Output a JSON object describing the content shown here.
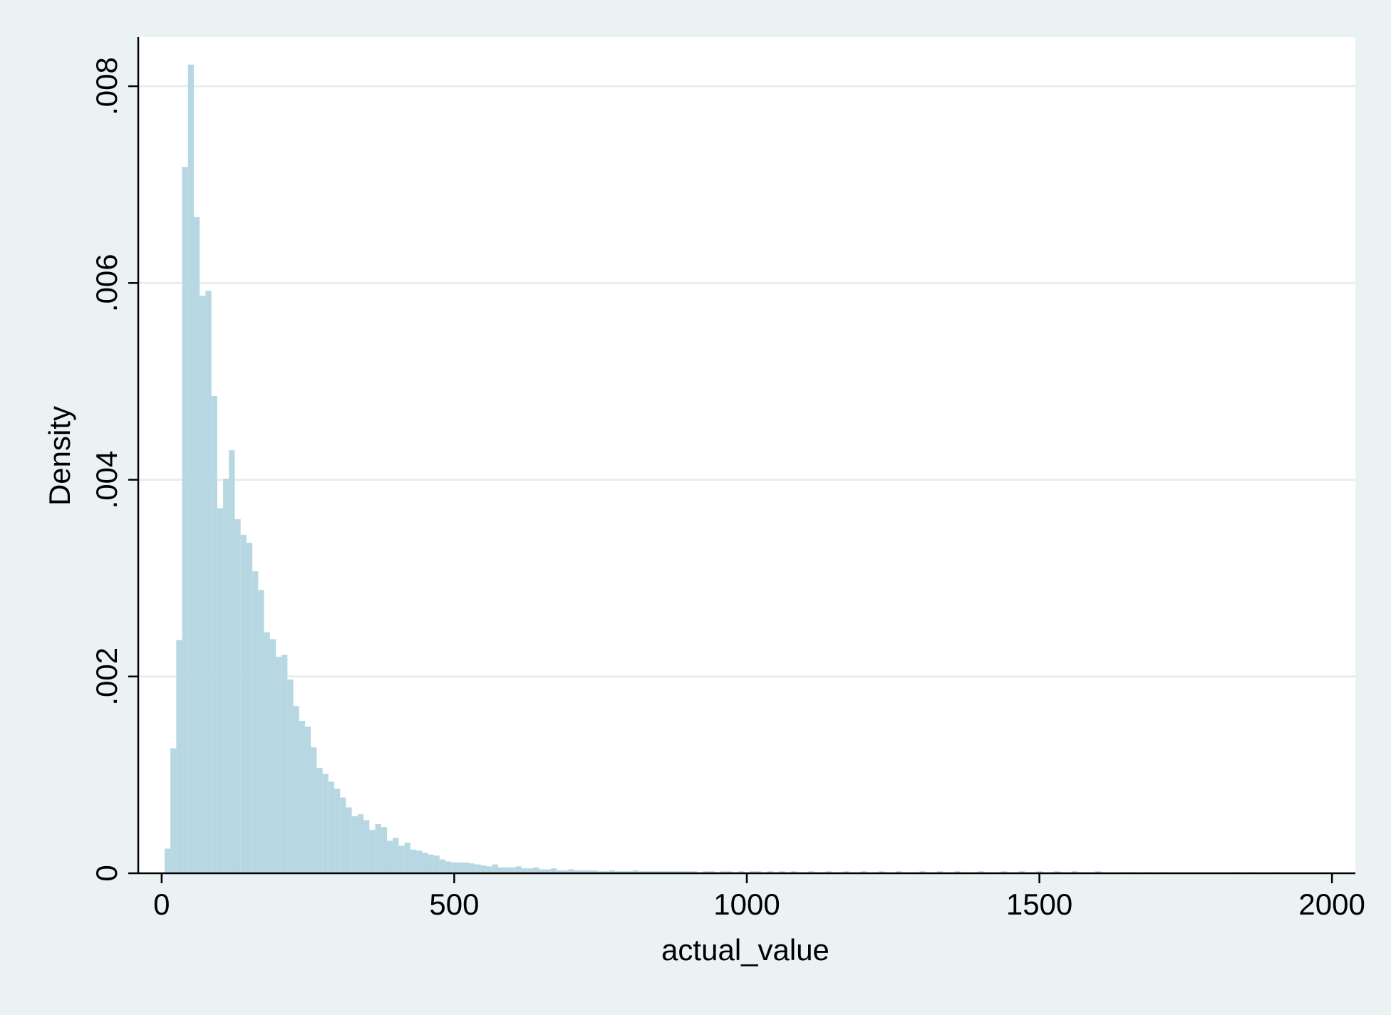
{
  "chart_data": {
    "type": "bar",
    "title": "",
    "xlabel": "actual_value",
    "ylabel": "Density",
    "xlim": [
      -40,
      2040
    ],
    "ylim": [
      0,
      0.0085
    ],
    "x_ticks": [
      0,
      500,
      1000,
      1500,
      2000
    ],
    "x_tick_labels": [
      "0",
      "500",
      "1000",
      "1500",
      "2000"
    ],
    "y_ticks": [
      0,
      0.002,
      0.004,
      0.006,
      0.008
    ],
    "y_tick_labels": [
      "0",
      ".002",
      ".004",
      ".006",
      ".008"
    ],
    "grid": "horizontal",
    "bin_width": 10,
    "bins_start": 5,
    "colors": {
      "bar": "#b7d7e2",
      "grid": "#e6eeee",
      "plot_bg": "#ffffff",
      "outer_bg": "#eaf2f3",
      "axis": "#000000"
    },
    "values": [
      0.00025,
      0.00127,
      0.00237,
      0.00718,
      0.00822,
      0.00667,
      0.00587,
      0.00592,
      0.00485,
      0.00371,
      0.00401,
      0.0043,
      0.0036,
      0.00344,
      0.00336,
      0.00307,
      0.00288,
      0.00245,
      0.00238,
      0.0022,
      0.00222,
      0.00197,
      0.0017,
      0.00155,
      0.00149,
      0.00128,
      0.00107,
      0.00101,
      0.00093,
      0.00086,
      0.00077,
      0.00067,
      0.00058,
      0.0006,
      0.00054,
      0.00044,
      0.0005,
      0.00047,
      0.00033,
      0.00036,
      0.00028,
      0.00031,
      0.00024,
      0.00023,
      0.00021,
      0.00019,
      0.00018,
      0.00014,
      0.00012,
      0.00011,
      0.00011,
      0.00011,
      0.0001,
      9e-05,
      8e-05,
      7e-05,
      9e-05,
      6e-05,
      6e-05,
      6e-05,
      7e-05,
      5e-05,
      5e-05,
      6e-05,
      4e-05,
      4e-05,
      5e-05,
      3e-05,
      3e-05,
      4e-05,
      3e-05,
      3e-05,
      3e-05,
      3e-05,
      2e-05,
      2e-05,
      3e-05,
      2e-05,
      2e-05,
      2e-05,
      3e-05,
      2e-05,
      2e-05,
      2e-05,
      2e-05,
      2e-05,
      2e-05,
      2e-05,
      2e-05,
      2e-05,
      2e-05,
      1e-05,
      2e-05,
      2e-05,
      1e-05,
      2e-05,
      2e-05,
      1e-05,
      2e-05,
      1e-05,
      2e-05,
      2e-05,
      1e-05,
      2e-05,
      1e-05,
      2e-05,
      1e-05,
      2e-05,
      1e-05,
      1e-05,
      2e-05,
      1e-05,
      1e-05,
      2e-05,
      1e-05,
      1e-05,
      2e-05,
      1e-05,
      1e-05,
      2e-05,
      0,
      1e-05,
      2e-05,
      1e-05,
      0,
      2e-05,
      1e-05,
      0,
      1e-05,
      2e-05,
      1e-05,
      0,
      2e-05,
      1e-05,
      0,
      2e-05,
      1e-05,
      0,
      1e-05,
      2e-05,
      1e-05,
      0,
      1e-05,
      2e-05,
      1e-05,
      0,
      2e-05,
      1e-05,
      1e-05,
      2e-05,
      0,
      1e-05,
      2e-05,
      1e-05,
      0,
      2e-05,
      1e-05,
      1e-05,
      0,
      2e-05,
      1e-05,
      0,
      0,
      1e-05,
      0,
      1e-05,
      0,
      0,
      1e-05,
      0,
      1e-05,
      0,
      0,
      0,
      0,
      0,
      0,
      0,
      0,
      0,
      0,
      0,
      1e-05,
      1e-05,
      0,
      1e-05,
      0,
      0,
      0,
      1e-05,
      0,
      0,
      0,
      0,
      0,
      0,
      0,
      1e-05,
      0,
      0
    ]
  }
}
